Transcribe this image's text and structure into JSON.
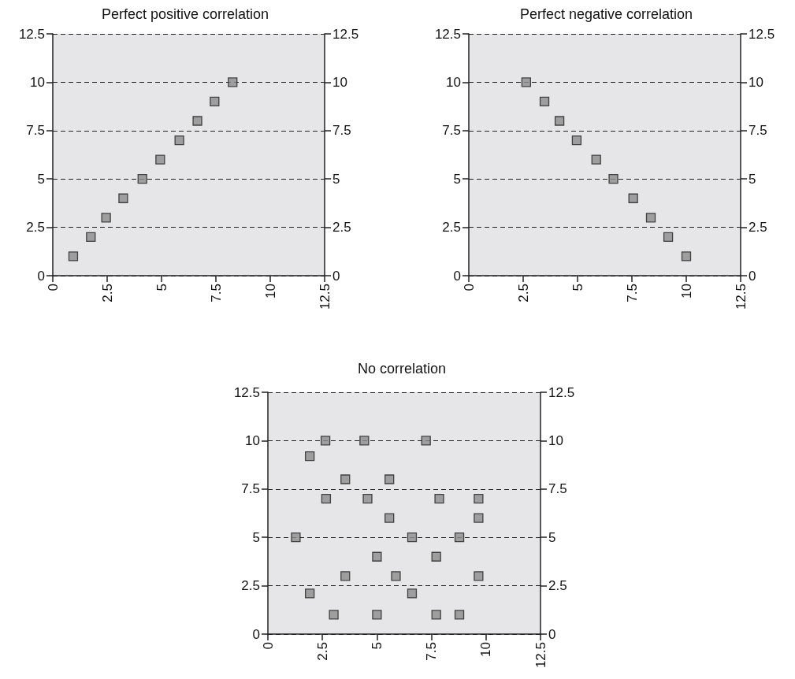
{
  "chart_data": [
    {
      "type": "scatter",
      "title": "Perfect positive correlation",
      "marker": "square",
      "grid": "y",
      "series": [
        {
          "color": "#8c8c8c",
          "x": [
            0.94,
            1.75,
            2.45,
            3.24,
            4.12,
            4.94,
            5.82,
            6.65,
            7.44,
            8.27
          ],
          "values": [
            1,
            2,
            3,
            4,
            5,
            6,
            7,
            8,
            9,
            10
          ]
        }
      ],
      "xlim": [
        0,
        12.5
      ],
      "xticks": [
        0,
        2.5,
        5,
        7.5,
        10,
        12.5
      ],
      "ylim": [
        0,
        12.5
      ],
      "yticks": [
        0,
        2.5,
        5,
        7.5,
        10,
        12.5
      ],
      "y2lim": [
        0,
        12.5
      ],
      "y2ticks": [
        0,
        2.5,
        5,
        7.5,
        10,
        12.5
      ]
    },
    {
      "type": "scatter",
      "title": "Perfect negative correlation",
      "marker": "square",
      "grid": "y",
      "series": [
        {
          "color": "#8c8c8c",
          "x": [
            2.64,
            3.48,
            4.17,
            4.96,
            5.86,
            6.65,
            7.56,
            8.37,
            9.17,
            10.0
          ],
          "values": [
            10,
            9,
            8,
            7,
            6,
            5,
            4,
            3,
            2,
            1
          ]
        }
      ],
      "xlim": [
        0,
        12.5
      ],
      "xticks": [
        0,
        2.5,
        5,
        7.5,
        10,
        12.5
      ],
      "ylim": [
        0,
        12.5
      ],
      "yticks": [
        0,
        2.5,
        5,
        7.5,
        10,
        12.5
      ],
      "y2lim": [
        0,
        12.5
      ],
      "y2ticks": [
        0,
        2.5,
        5,
        7.5,
        10,
        12.5
      ]
    },
    {
      "type": "scatter",
      "title": "No correlation",
      "marker": "square",
      "grid": "y",
      "series": [
        {
          "color": "#8c8c8c",
          "x": [
            2.64,
            4.42,
            7.25,
            1.92,
            3.55,
            5.57,
            2.67,
            4.57,
            7.86,
            9.66,
            5.57,
            9.66,
            1.28,
            6.61,
            8.78,
            5.0,
            7.72,
            3.55,
            5.87,
            9.66,
            1.92,
            6.61,
            3.02,
            5.0,
            7.72,
            8.78
          ],
          "values": [
            10,
            10,
            10,
            9.2,
            8,
            8,
            7,
            7,
            7,
            7,
            6,
            6,
            5,
            5,
            5,
            4,
            4,
            3,
            3,
            3,
            2.1,
            2.1,
            1,
            1,
            1,
            1
          ]
        }
      ],
      "xlim": [
        0,
        12.5
      ],
      "xticks": [
        0,
        2.5,
        5,
        7.5,
        10,
        12.5
      ],
      "ylim": [
        0,
        12.5
      ],
      "yticks": [
        0,
        2.5,
        5,
        7.5,
        10,
        12.5
      ],
      "y2lim": [
        0,
        12.5
      ],
      "y2ticks": [
        0,
        2.5,
        5,
        7.5,
        10,
        12.5
      ]
    }
  ]
}
